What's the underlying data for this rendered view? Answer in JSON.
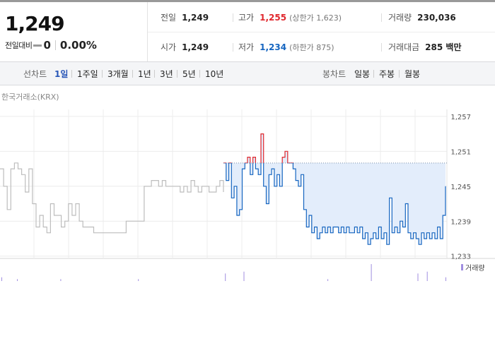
{
  "quote": {
    "price": "1,249",
    "change_label": "전일대비",
    "change_value": "0",
    "change_pct": "0.00%"
  },
  "stats": {
    "prev_close": {
      "label": "전일",
      "value": "1,249"
    },
    "high": {
      "label": "고가",
      "value": "1,255",
      "limit": "(상한가 1,623)"
    },
    "volume": {
      "label": "거래량",
      "value": "230,036"
    },
    "open": {
      "label": "시가",
      "value": "1,249"
    },
    "low": {
      "label": "저가",
      "value": "1,234",
      "limit": "(하한가 875)"
    },
    "amount": {
      "label": "거래대금",
      "value": "285 백만"
    }
  },
  "period_tabs": {
    "label": "선차트",
    "items": [
      "1일",
      "1주일",
      "3개월",
      "1년",
      "3년",
      "5년",
      "10년"
    ],
    "active": "1일"
  },
  "candle_tabs": {
    "label": "봉차트",
    "items": [
      "일봉",
      "주봉",
      "월봉"
    ]
  },
  "colors": {
    "up": "#e0262c",
    "down": "#1565c0",
    "previous_line": "#bdbdbd",
    "fill": "#e3edfb",
    "volume": "#a08ee0"
  },
  "chart_data": {
    "type": "line",
    "source": "한국거래소(KRX)",
    "ytick_labels": [
      "1,257",
      "1,251",
      "1,245",
      "1,239",
      "1,233"
    ],
    "yticks": [
      1257,
      1251,
      1245,
      1239,
      1233
    ],
    "ylim": [
      1232.6,
      1258.2
    ],
    "grid": true,
    "reference_line": {
      "name": "전일",
      "value": 1249
    },
    "previous_day_series": [
      1248,
      1245,
      1241,
      1248,
      1249,
      1248,
      1247,
      1244,
      1248,
      1242,
      1238,
      1240,
      1238,
      1237,
      1242,
      1240,
      1240,
      1238,
      1239,
      1242,
      1240,
      1242,
      1239,
      1238,
      1238,
      1238,
      1237,
      1237,
      1237,
      1237,
      1237,
      1237,
      1237,
      1237,
      1237,
      1239,
      1239,
      1239,
      1239,
      1239,
      1245,
      1245,
      1246,
      1246,
      1245,
      1246,
      1245,
      1245,
      1245,
      1245,
      1244,
      1245,
      1244,
      1246,
      1245,
      1244,
      1245,
      1245,
      1244,
      1244,
      1245,
      1246,
      1244
    ],
    "today_series": [
      1249,
      1246,
      1249,
      1243,
      1245,
      1240,
      1241,
      1248,
      1249,
      1250,
      1247,
      1250,
      1248,
      1247,
      1254,
      1245,
      1242,
      1247,
      1248,
      1245,
      1247,
      1245,
      1250,
      1251,
      1249,
      1249,
      1248,
      1246,
      1245,
      1247,
      1241,
      1238,
      1240,
      1237,
      1238,
      1236,
      1237,
      1238,
      1237,
      1238,
      1237,
      1238,
      1238,
      1237,
      1238,
      1237,
      1238,
      1237,
      1237,
      1238,
      1237,
      1238,
      1236,
      1237,
      1235,
      1236,
      1237,
      1236,
      1238,
      1236,
      1237,
      1235,
      1243,
      1237,
      1238,
      1237,
      1239,
      1238,
      1242,
      1237,
      1236,
      1237,
      1236,
      1235,
      1237,
      1236,
      1237,
      1236,
      1237,
      1236,
      1238,
      1236,
      1240,
      1245
    ],
    "volume_legend": "거래량",
    "volume_series": [
      2,
      0,
      0,
      0,
      0,
      1,
      0,
      0,
      0,
      0,
      0,
      0,
      0,
      0,
      0,
      0,
      0,
      0,
      0,
      1,
      0,
      0,
      0,
      0,
      0,
      0,
      0,
      0,
      0,
      0,
      0,
      0,
      0,
      0,
      0,
      0,
      0,
      0,
      0,
      0,
      0,
      0,
      0,
      0,
      1,
      0,
      0,
      0,
      0,
      0,
      0,
      0,
      0,
      0,
      0,
      0,
      0,
      0,
      0,
      0,
      0,
      0,
      0,
      0,
      0,
      0,
      0,
      0,
      0,
      0,
      0,
      0,
      4,
      0,
      0,
      0,
      0,
      0,
      5,
      0,
      0,
      0,
      0,
      0,
      0,
      0,
      0,
      0,
      0,
      0,
      0,
      0,
      0,
      0,
      0,
      0,
      0,
      0,
      0,
      0,
      0,
      0,
      0,
      0,
      0,
      1,
      0,
      0,
      0,
      0,
      0,
      0,
      0,
      0,
      0,
      0,
      0,
      0,
      0,
      9,
      0,
      0,
      0,
      0,
      0,
      0,
      0,
      0,
      0,
      0,
      0,
      0,
      0,
      0,
      4,
      0,
      0,
      5,
      0,
      0,
      0,
      0,
      0,
      2
    ]
  }
}
